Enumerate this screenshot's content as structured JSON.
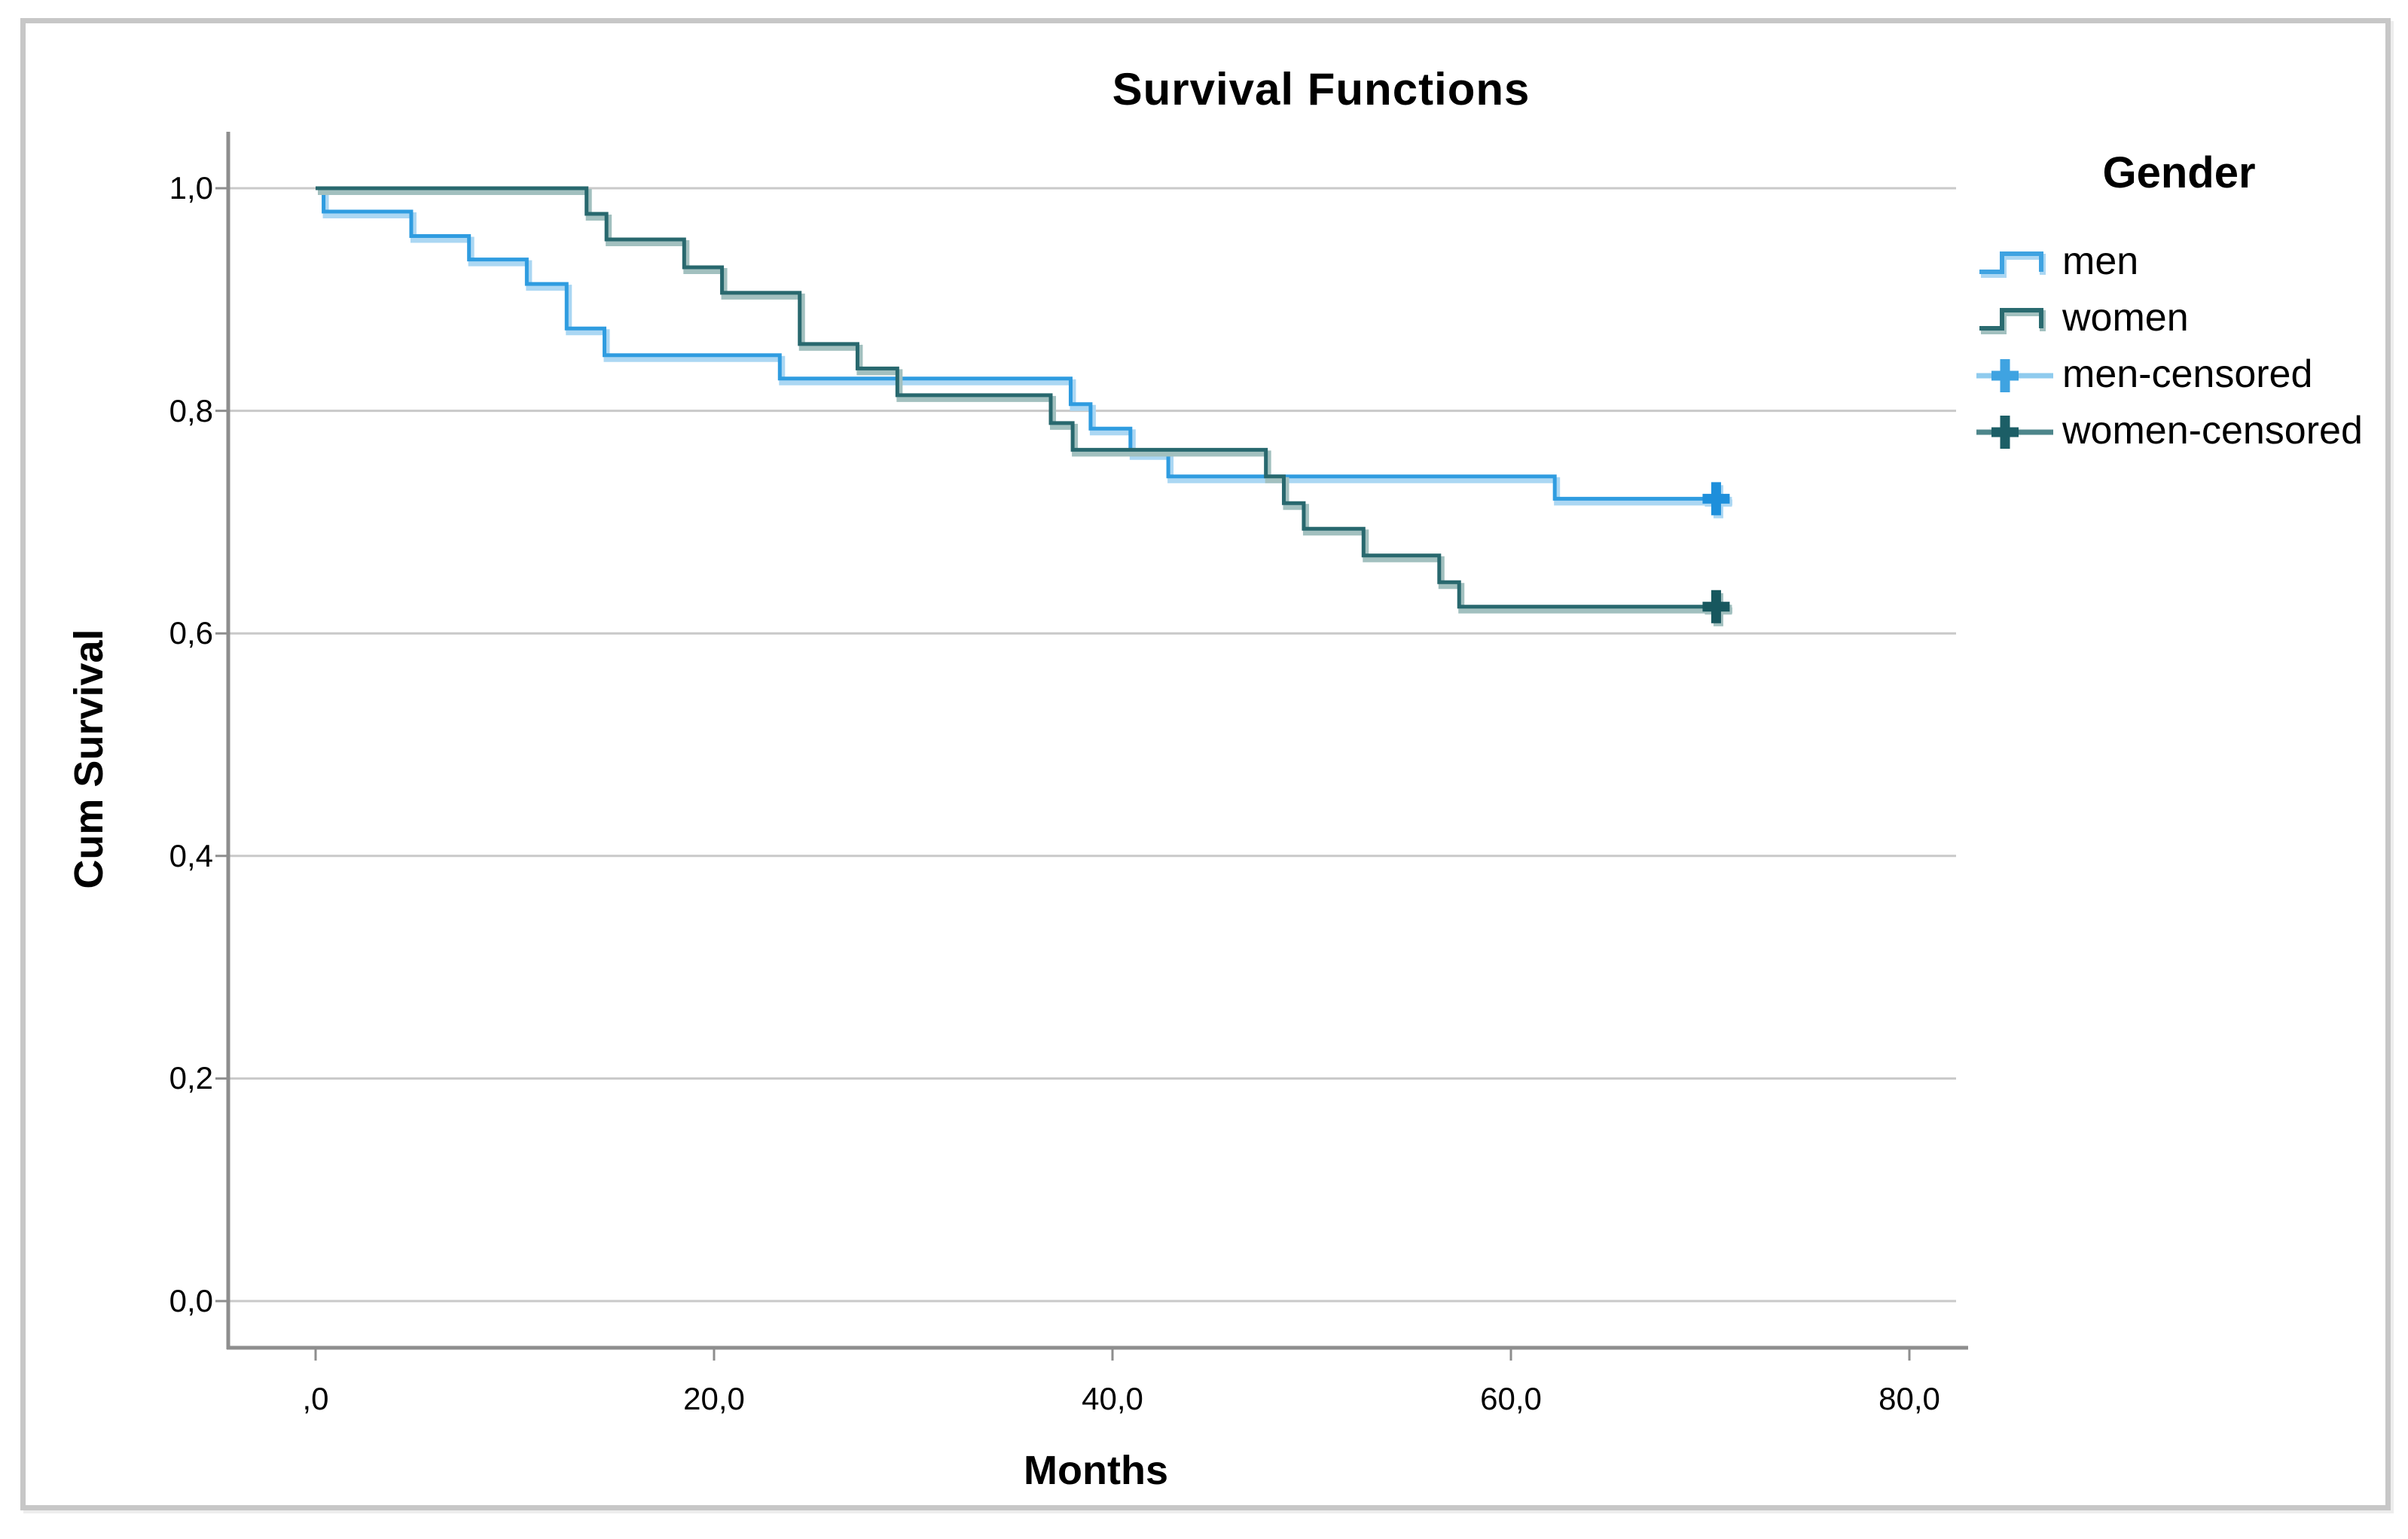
{
  "title": "Survival Functions",
  "axes": {
    "x": {
      "label": "Months",
      "tick_labels": [
        ",0",
        "20,0",
        "40,0",
        "60,0",
        "80,0"
      ],
      "tick_values": [
        0,
        20,
        40,
        60,
        80
      ]
    },
    "y": {
      "label": "Cum Survival",
      "tick_labels": [
        "1,0",
        "0,8",
        "0,6",
        "0,4",
        "0,2",
        "0,0"
      ],
      "tick_values": [
        1.0,
        0.8,
        0.6,
        0.4,
        0.2,
        0.0
      ]
    }
  },
  "legend": {
    "title": "Gender",
    "entries": [
      {
        "label": "men",
        "glyph": "step",
        "line": "#3FA3E1",
        "halo": "#ABD7F3",
        "cross": "#3FA3E1"
      },
      {
        "label": "women",
        "glyph": "step",
        "line": "#2A6B70",
        "halo": "#A2C0BF",
        "cross": "#2A6B70"
      },
      {
        "label": "men-censored",
        "glyph": "censor",
        "line": "#8FCBEE",
        "halo": "#ABD7F3",
        "cross": "#3FA3E1"
      },
      {
        "label": "women-censored",
        "glyph": "censor",
        "line": "#4D868B",
        "halo": "#A2C0BF",
        "cross": "#1C5E66"
      }
    ]
  },
  "chart_data": {
    "type": "line",
    "subtype": "kaplan-meier-step-survival",
    "title": "Survival Functions",
    "xlabel": "Months",
    "ylabel": "Cum Survival",
    "xlim": [
      -4.4,
      82.4
    ],
    "ylim": [
      -0.042,
      1.049
    ],
    "grid": "horizontal",
    "legend_position": "right",
    "x_ticks": [
      0,
      20,
      40,
      60,
      80
    ],
    "y_ticks": [
      1.0,
      0.8,
      0.6,
      0.4,
      0.2,
      0.0
    ],
    "series": [
      {
        "name": "men",
        "color": "#2F9CE0",
        "halo": "#ABD7F3",
        "censor_color": "#1E8FDB",
        "points": [
          [
            0,
            1.0
          ],
          [
            0.4,
            0.979
          ],
          [
            4.8,
            0.957
          ],
          [
            7.7,
            0.936
          ],
          [
            10.6,
            0.914
          ],
          [
            12.6,
            0.874
          ],
          [
            14.5,
            0.85
          ],
          [
            23.3,
            0.829
          ],
          [
            37.9,
            0.806
          ],
          [
            38.9,
            0.784
          ],
          [
            40.9,
            0.762
          ],
          [
            42.8,
            0.741
          ],
          [
            62.2,
            0.721
          ]
        ],
        "line_end_x": 71,
        "censored": [
          [
            70.3,
            0.721
          ]
        ]
      },
      {
        "name": "women",
        "color": "#28686E",
        "halo": "#A2C0BF",
        "censor_color": "#17575E",
        "points": [
          [
            0,
            1.0
          ],
          [
            13.6,
            0.977
          ],
          [
            14.6,
            0.954
          ],
          [
            18.5,
            0.929
          ],
          [
            20.4,
            0.906
          ],
          [
            24.3,
            0.86
          ],
          [
            27.2,
            0.838
          ],
          [
            29.2,
            0.814
          ],
          [
            36.9,
            0.789
          ],
          [
            38.0,
            0.765
          ],
          [
            47.7,
            0.741
          ],
          [
            48.6,
            0.717
          ],
          [
            49.6,
            0.694
          ],
          [
            52.6,
            0.67
          ],
          [
            56.4,
            0.646
          ],
          [
            57.4,
            0.624
          ]
        ],
        "line_end_x": 71,
        "censored": [
          [
            70.3,
            0.624
          ]
        ]
      }
    ]
  },
  "colors": {
    "grid": "#C9C9C9",
    "axis": "#8E8E8E",
    "frame": "#C7C7C7",
    "text": "#000000",
    "background": "#FFFFFF"
  }
}
